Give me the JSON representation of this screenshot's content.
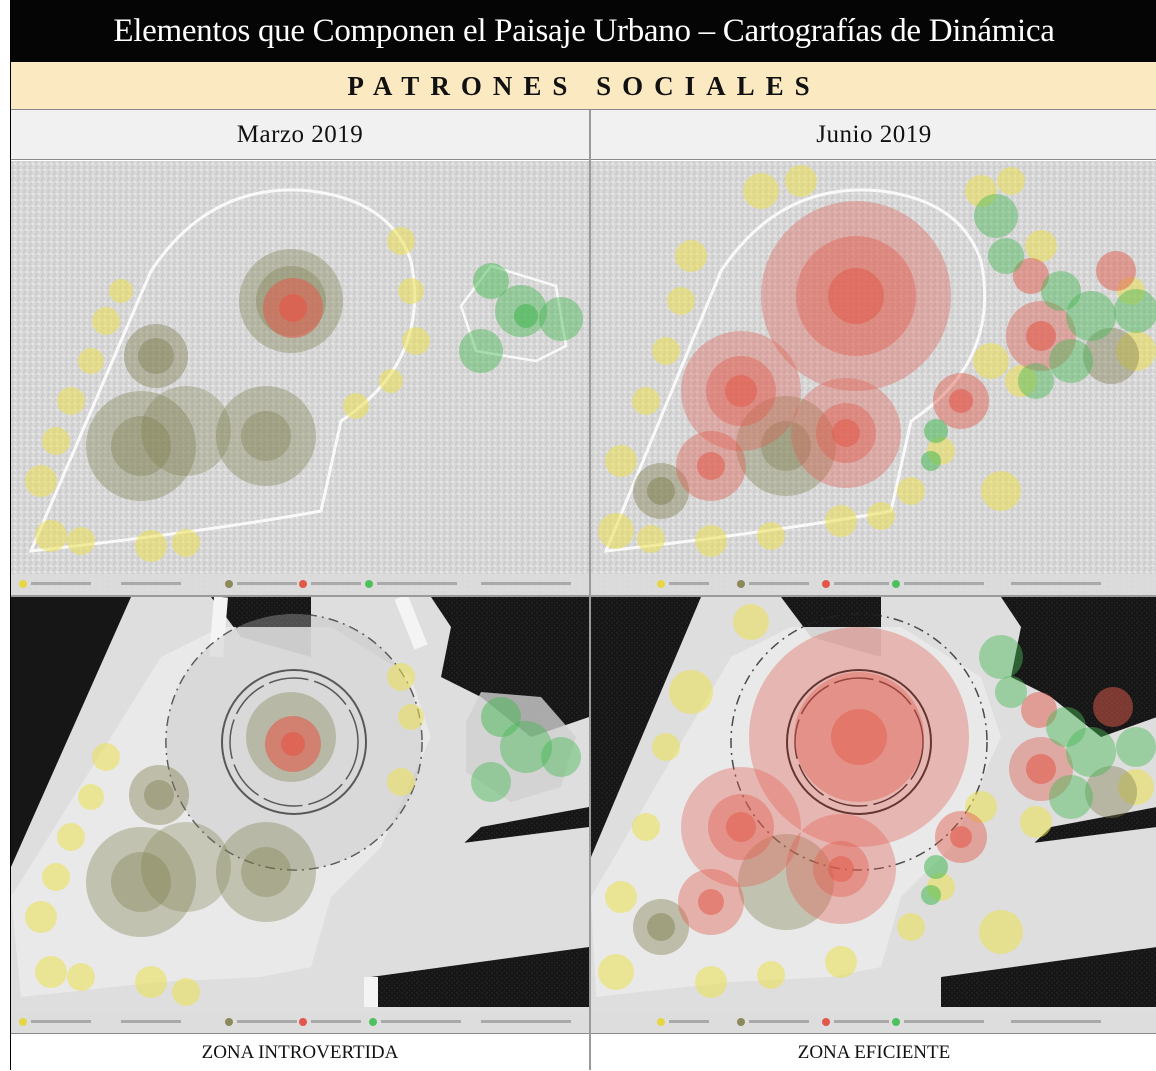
{
  "header": {
    "title": "Elementos que Componen el Paisaje Urbano – Cartografías de Dinámica",
    "subtitle": "PATRONES SOCIALES"
  },
  "columns": [
    {
      "label": "Marzo 2019",
      "zone": "ZONA INTROVERTIDA"
    },
    {
      "label": "Junio 2019",
      "zone": "ZONA EFICIENTE"
    }
  ],
  "legend": {
    "colors": [
      "#e6d646",
      "#8c8a5a",
      "#e2574a",
      "#4fc060"
    ]
  },
  "colors": {
    "yellow": "#ece052",
    "olive": "#7c7a4a",
    "red": "#e25b4c",
    "green": "#46b954",
    "title_bg": "#050505",
    "subtitle_bg": "#fbe9c2"
  }
}
